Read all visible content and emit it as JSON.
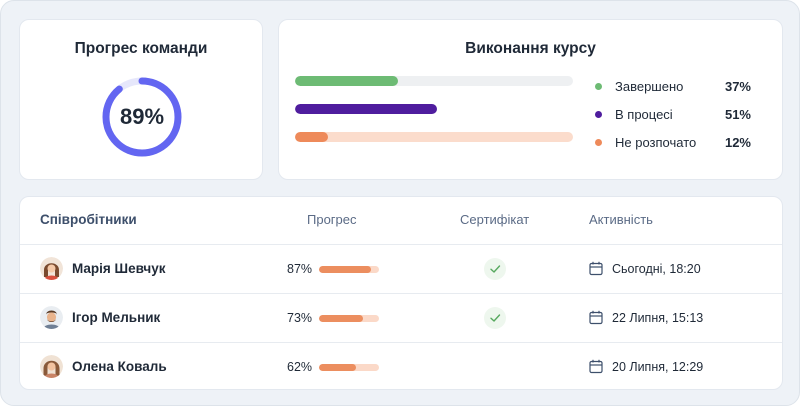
{
  "team_progress": {
    "title": "Прогрес команди",
    "value_label": "89%",
    "value": 0.89,
    "ring_color": "#6366f1",
    "track_color": "#e6e7fb"
  },
  "course": {
    "title": "Виконання курсу",
    "segments": [
      {
        "label": "Завершено",
        "pct_label": "37%",
        "value": 0.37,
        "color": "#6dbb74",
        "track": "#eef0f2"
      },
      {
        "label": "В процесі",
        "pct_label": "51%",
        "value": 0.51,
        "color": "#4f1d9e",
        "track": "#ffffff"
      },
      {
        "label": "Не розпочато",
        "pct_label": "12%",
        "value": 0.12,
        "color": "#ee8a5a",
        "track": "#fbdccc"
      }
    ]
  },
  "employees": {
    "headers": {
      "name": "Співробітники",
      "progress": "Прогрес",
      "certificate": "Сертифікат",
      "activity": "Активність"
    },
    "rows": [
      {
        "name": "Марія Шевчук",
        "progress_label": "87%",
        "progress": 0.87,
        "certificate": true,
        "activity": "Сьогодні, 18:20",
        "avatar": "avatar-woman-1"
      },
      {
        "name": "Ігор Мельник",
        "progress_label": "73%",
        "progress": 0.73,
        "certificate": true,
        "activity": "22 Липня, 15:13",
        "avatar": "avatar-man-1"
      },
      {
        "name": "Олена Коваль",
        "progress_label": "62%",
        "progress": 0.62,
        "certificate": false,
        "activity": "20 Липня, 12:29",
        "avatar": "avatar-woman-2"
      }
    ]
  },
  "icons": {
    "certificate": "check-icon",
    "activity": "calendar-icon"
  }
}
